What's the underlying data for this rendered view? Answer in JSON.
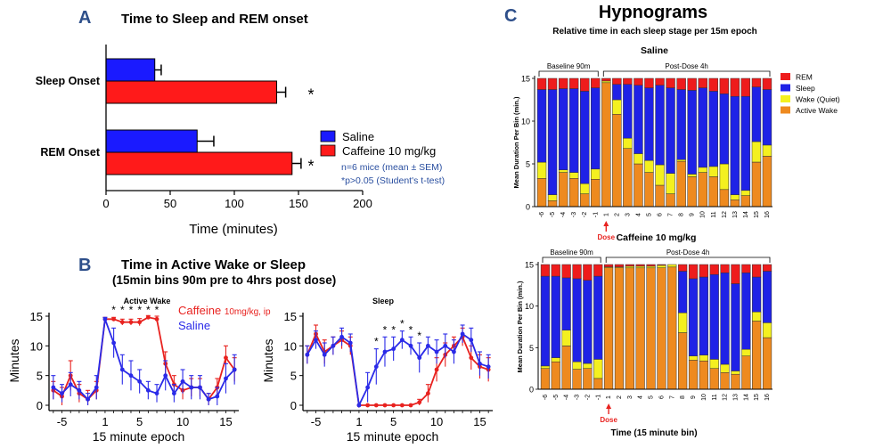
{
  "panel_a": {
    "letter": "A",
    "title": "Time to Sleep and REM onset",
    "legend": {
      "items": [
        {
          "label": "Saline",
          "color": "#1a1aff"
        },
        {
          "label": "Caffeine 10 mg/kg",
          "color": "#ff1a1a"
        }
      ],
      "note1": "n=6 mice (mean ± SEM)",
      "note2": "*p>0.05 (Student's t-test)"
    }
  },
  "panel_b": {
    "letter": "B",
    "title1": "Time in Active Wake or Sleep",
    "title2": "(15min bins 90m pre to 4hrs post dose)",
    "legend_caffeine": "Caffeine",
    "legend_caffeine_sub": "10mg/kg, ip",
    "legend_saline": "Saline"
  },
  "panel_c": {
    "letter": "C",
    "title": "Hypnograms",
    "subtitle": "Relative time in each sleep stage per 15m epoch",
    "legend": [
      {
        "label": "REM",
        "color": "#ee1c1c"
      },
      {
        "label": "Sleep",
        "color": "#1f22e6"
      },
      {
        "label": "Wake (Quiet)",
        "color": "#f4f01f"
      },
      {
        "label": "Active Wake",
        "color": "#ee8a1f"
      }
    ],
    "baseline_label": "Baseline 90m",
    "postdose_label": "Post-Dose 4h",
    "dose_label": "Dose",
    "xlabel": "Time (15 minute bin)"
  },
  "chart_data": [
    {
      "type": "bar",
      "orientation": "horizontal",
      "title": "Time to Sleep and REM onset",
      "categories": [
        "Sleep Onset",
        "REM Onset"
      ],
      "series": [
        {
          "name": "Saline",
          "values": [
            38,
            71
          ],
          "errors": [
            5,
            13
          ],
          "color": "#1a1aff"
        },
        {
          "name": "Caffeine 10 mg/kg",
          "values": [
            133,
            145
          ],
          "errors": [
            7,
            7
          ],
          "color": "#ff1a1a"
        }
      ],
      "significance": [
        "*",
        "*"
      ],
      "xlabel": "Time (minutes)",
      "xlim": [
        0,
        200
      ],
      "xticks": [
        0,
        50,
        100,
        150,
        200
      ]
    },
    {
      "type": "line",
      "title": "Active Wake",
      "xlabel": "15 minute epoch",
      "ylabel": "Minutes",
      "ylim": [
        0,
        15
      ],
      "yticks": [
        0,
        5,
        10,
        15
      ],
      "xticks": [
        -5,
        1,
        5,
        10,
        15
      ],
      "xtick_positions": [
        -5,
        1,
        5,
        10,
        15
      ],
      "x": [
        -6,
        -5,
        -4,
        -3,
        -2,
        -1,
        1,
        2,
        3,
        4,
        5,
        6,
        7,
        8,
        9,
        10,
        11,
        12,
        13,
        14,
        15,
        16
      ],
      "stars": [
        2,
        3,
        4,
        5,
        6,
        7
      ],
      "series": [
        {
          "name": "Caffeine",
          "color": "#e8221f",
          "values": [
            2.5,
            1.5,
            5,
            2,
            1,
            2.5,
            14.5,
            14.5,
            14,
            14,
            14,
            14.8,
            14.5,
            7,
            3.5,
            2.5,
            3,
            3,
            1,
            3,
            8,
            6
          ],
          "errors": [
            1.5,
            1.5,
            2.5,
            1.5,
            1.5,
            1.5,
            0.3,
            0.3,
            0.5,
            0.5,
            0.6,
            0.3,
            0.5,
            2,
            1.5,
            1.5,
            1.5,
            1.5,
            1,
            1.5,
            2,
            2
          ]
        },
        {
          "name": "Saline",
          "color": "#2a2ae8",
          "values": [
            3,
            2,
            3.5,
            2.5,
            1,
            3,
            14.5,
            10.5,
            6,
            5,
            4,
            2.5,
            2,
            5,
            2,
            4,
            3,
            3,
            1,
            1.5,
            4.5,
            6
          ],
          "errors": [
            2,
            1.5,
            2,
            1.5,
            1,
            2,
            0.3,
            2.5,
            2.5,
            2.5,
            2,
            1.5,
            1.5,
            2.5,
            1.5,
            2,
            2,
            2,
            1,
            1.5,
            2.5,
            2.5
          ]
        }
      ]
    },
    {
      "type": "line",
      "title": "Sleep",
      "xlabel": "15 minute epoch",
      "ylabel": "Minutes",
      "ylim": [
        0,
        15
      ],
      "yticks": [
        0,
        5,
        10,
        15
      ],
      "xticks": [
        -5,
        1,
        5,
        10,
        15
      ],
      "x": [
        -6,
        -5,
        -4,
        -3,
        -2,
        -1,
        1,
        2,
        3,
        4,
        5,
        6,
        7,
        8,
        9,
        10,
        11,
        12,
        13,
        14,
        15,
        16
      ],
      "stars": [
        3,
        4,
        5,
        6,
        7,
        8
      ],
      "series": [
        {
          "name": "Caffeine",
          "color": "#e8221f",
          "values": [
            8.5,
            12,
            9,
            10,
            11,
            10,
            0,
            0,
            0,
            0,
            0,
            0,
            0,
            0.5,
            2,
            6,
            8.5,
            10,
            11.5,
            8,
            6.5,
            6
          ],
          "errors": [
            1.5,
            1.5,
            2,
            1.5,
            1.5,
            1.5,
            0,
            0,
            0,
            0,
            0,
            0,
            0,
            0.5,
            1.5,
            2,
            2,
            1.5,
            1.5,
            2,
            2,
            2
          ]
        },
        {
          "name": "Saline",
          "color": "#2a2ae8",
          "values": [
            8.5,
            11,
            8.5,
            10,
            11.5,
            10.5,
            0,
            3,
            6.5,
            9,
            9.5,
            11,
            10,
            8,
            10,
            9,
            10,
            9,
            12,
            11,
            7,
            6.5
          ],
          "errors": [
            1.5,
            1.5,
            2,
            1.5,
            1.5,
            1.5,
            0,
            2.5,
            3,
            2.5,
            2,
            1.5,
            1.5,
            2.5,
            1.5,
            2,
            2,
            2,
            1.5,
            2,
            2,
            2
          ]
        }
      ]
    },
    {
      "type": "bar",
      "stacked": true,
      "title": "Saline",
      "ylabel": "Mean Duration Per Bin (min.)",
      "ylim": [
        0,
        15
      ],
      "yticks": [
        0,
        5,
        10,
        15
      ],
      "categories": [
        "-6",
        "-5",
        "-4",
        "-3",
        "-2",
        "-1",
        "1",
        "2",
        "3",
        "4",
        "5",
        "6",
        "7",
        "8",
        "9",
        "10",
        "11",
        "12",
        "13",
        "14",
        "15",
        "16"
      ],
      "series": [
        {
          "name": "Active Wake",
          "color": "#ee8a1f",
          "values": [
            3.3,
            0.7,
            4,
            3.3,
            1.5,
            3.2,
            14.5,
            10.8,
            6.8,
            5,
            4,
            2.5,
            1.5,
            5.3,
            3.5,
            4,
            3.5,
            2,
            0.8,
            1.3,
            5.2,
            5.9
          ]
        },
        {
          "name": "Wake (Quiet)",
          "color": "#f4f01f",
          "values": [
            1.9,
            0.7,
            0.3,
            0.7,
            1.2,
            1.2,
            0.2,
            1.7,
            1.2,
            1.2,
            1.4,
            2.4,
            2.4,
            0.2,
            0.3,
            0.6,
            1.2,
            3,
            0.6,
            0.6,
            2.4,
            1.3
          ]
        },
        {
          "name": "Sleep",
          "color": "#1f22e6",
          "values": [
            8.5,
            12.3,
            9.5,
            9.8,
            10.8,
            9.5,
            0,
            1.8,
            6.3,
            8,
            8.5,
            9.3,
            10,
            8.2,
            9.8,
            9.3,
            8.8,
            8.2,
            11.5,
            11,
            6.4,
            6.5
          ]
        },
        {
          "name": "REM",
          "color": "#ee1c1c",
          "values": [
            1.3,
            1.3,
            1.2,
            1.2,
            1.5,
            1.1,
            0.3,
            0.7,
            0.7,
            0.8,
            1.1,
            0.8,
            1.1,
            1.3,
            1.4,
            1.1,
            1.5,
            1.8,
            2.1,
            2.1,
            1,
            1.3
          ]
        }
      ]
    },
    {
      "type": "bar",
      "stacked": true,
      "title": "Caffeine 10 mg/kg",
      "xlabel": "Time (15 minute bin)",
      "ylabel": "Mean Duration Per Bin (min.)",
      "ylim": [
        0,
        15
      ],
      "yticks": [
        0,
        5,
        10,
        15
      ],
      "categories": [
        "-6",
        "-5",
        "-4",
        "-3",
        "-2",
        "-1",
        "1",
        "2",
        "3",
        "4",
        "5",
        "6",
        "7",
        "8",
        "9",
        "10",
        "11",
        "12",
        "13",
        "14",
        "15",
        "16"
      ],
      "series": [
        {
          "name": "Active Wake",
          "color": "#ee8a1f",
          "values": [
            2.5,
            3.3,
            5.2,
            2.4,
            2.5,
            1.3,
            14.6,
            14.6,
            14.6,
            14.6,
            14.6,
            14.6,
            14.7,
            6.8,
            3.5,
            3.4,
            2.5,
            2,
            1.8,
            4,
            8.2,
            6.2
          ]
        },
        {
          "name": "Wake (Quiet)",
          "color": "#f4f01f",
          "values": [
            0.3,
            0.5,
            1.9,
            0.9,
            0.6,
            2.3,
            0.1,
            0.1,
            0.2,
            0.2,
            0.2,
            0.3,
            0.3,
            2.4,
            0.5,
            0.7,
            1.1,
            1,
            0.4,
            0.8,
            1.1,
            1.8
          ]
        },
        {
          "name": "Sleep",
          "color": "#1f22e6",
          "values": [
            10.8,
            9.8,
            6.3,
            10,
            10,
            10,
            0,
            0,
            0,
            0,
            0,
            0,
            0,
            5,
            9.3,
            9.4,
            10.2,
            11,
            10.5,
            9.2,
            4.2,
            6.2
          ]
        },
        {
          "name": "REM",
          "color": "#ee1c1c",
          "values": [
            1.4,
            1.4,
            1.6,
            1.7,
            1.9,
            1.4,
            0.3,
            0.3,
            0.2,
            0.2,
            0.2,
            0.1,
            0,
            0.8,
            1.7,
            1.5,
            1.2,
            1,
            2.3,
            1,
            1.5,
            0.8
          ]
        }
      ]
    }
  ]
}
